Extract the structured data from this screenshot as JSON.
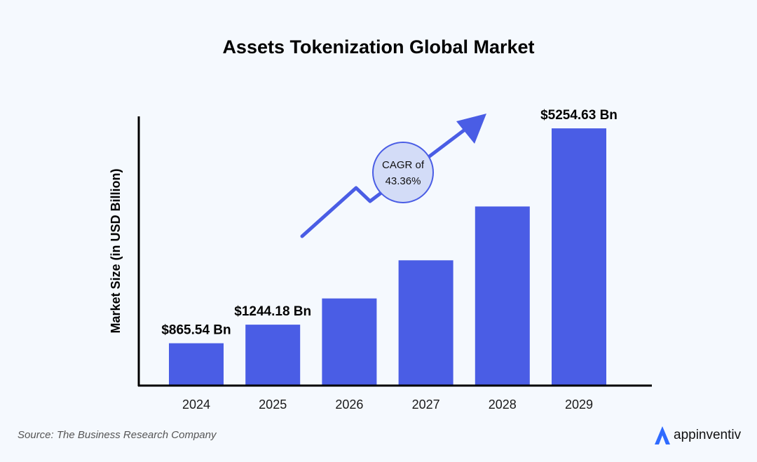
{
  "chart_data": {
    "type": "bar",
    "title": "Assets Tokenization Global Market",
    "ylabel": "Market Size (in USD Billion)",
    "xlabel": "",
    "categories": [
      "2024",
      "2025",
      "2026",
      "2027",
      "2028",
      "2029"
    ],
    "values": [
      865.54,
      1244.18,
      1780,
      2560,
      3660,
      5254.63
    ],
    "data_labels": [
      "$865.54 Bn",
      "$1244.18 Bn",
      "",
      "",
      "",
      "$5254.63 Bn"
    ],
    "ylim": [
      0,
      5500
    ],
    "grid": false,
    "bar_color": "#4a5de5",
    "annotation": {
      "line1": "CAGR of",
      "line2": "43.36%"
    }
  },
  "footer": {
    "source": "Source: The Business Research Company",
    "brand": "appinventiv"
  },
  "colors": {
    "background": "#f5f9fe",
    "accent": "#4a5de5",
    "circle_fill": "#d3dcf7",
    "brand_blue": "#2f6bff"
  }
}
